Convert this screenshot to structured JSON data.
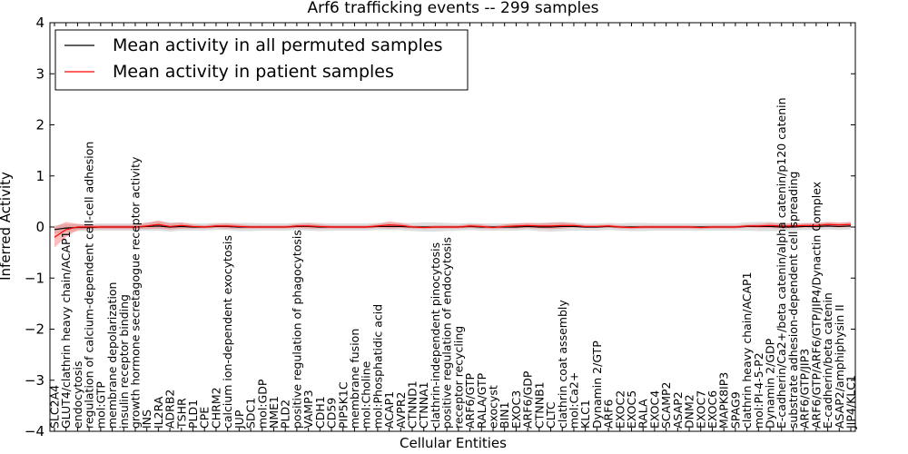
{
  "chart_data": {
    "type": "line",
    "title": "Arf6 trafficking events -- 299 samples",
    "xlabel": "Cellular Entities",
    "ylabel": "Inferred Activity",
    "ylim": [
      -4,
      4
    ],
    "yticks": [
      -4,
      -3,
      -2,
      -1,
      0,
      1,
      2,
      3,
      4
    ],
    "grid": false,
    "legend_position": "top-left",
    "categories": [
      "SLC2A4",
      "GLUT4/clathrin heavy chain/ACAP1",
      "endocytosis",
      "regulation of calcium-dependent cell-cell adhesion",
      "mol:GTP",
      "membrane depolarization",
      "insulin receptor binding",
      "growth hormone secretagogue receptor activity",
      "INS",
      "IL2RA",
      "ADRB2",
      "TSHR",
      "PLD1",
      "CPE",
      "CHRM2",
      "calcium ion-dependent exocytosis",
      "JUP",
      "SDC1",
      "mol:GDP",
      "NME1",
      "PLD2",
      "positive regulation of phagocytosis",
      "VAMP3",
      "CDH1",
      "CD59",
      "PIP5K1C",
      "membrane fusion",
      "mol:Choline",
      "mol:Phosphatidic acid",
      "ACAP1",
      "AVPR2",
      "CTNND1",
      "CTNNA1",
      "clathrin-independent pinocytosis",
      "positive regulation of endocytosis",
      "receptor recycling",
      "ARF6/GTP",
      "RALA/GTP",
      "exocyst",
      "BIN1",
      "EXOC3",
      "ARF6/GDP",
      "CTNNB1",
      "CLTC",
      "clathrin coat assembly",
      "mol:Ca2+",
      "KLC1",
      "Dynamin 2/GTP",
      "ARF6",
      "EXOC2",
      "EXOC5",
      "RALA",
      "EXOC4",
      "SCAMP2",
      "ASAP2",
      "DNM2",
      "EXOC7",
      "EXOC6",
      "MAPK8IP3",
      "SPAG9",
      "clathrin heavy chain/ACAP1",
      "mol:PI-4-5-P2",
      "Dynamin 2/GDP",
      "E-cadherin/Ca2+/beta catenin/alpha catenin/p120 catenin",
      "substrate adhesion-dependent cell spreading",
      "ARF6/GTP/JIP3",
      "ARF6/GTP/ARF6/GTP/JIP4/Dynactin Complex",
      "E-cadherin/beta catenin",
      "ASAP2/amphiphysin II",
      "JIP4/KLC1"
    ],
    "series": [
      {
        "name": "Mean activity in all permuted samples",
        "color": "#000000",
        "values": [
          -0.05,
          -0.02,
          -0.01,
          -0.01,
          0,
          0,
          0,
          0,
          0.01,
          0.02,
          0,
          0.01,
          0,
          0,
          0.01,
          0.01,
          0,
          0,
          0,
          0,
          0,
          0.01,
          0.01,
          0,
          0,
          0,
          0,
          0,
          0.01,
          0.01,
          0.01,
          0,
          0,
          0,
          0,
          0,
          0.01,
          0,
          0,
          0,
          0,
          0.01,
          0,
          0,
          0.01,
          0.01,
          0,
          0,
          0.01,
          0,
          0,
          0,
          0,
          0,
          0,
          0,
          0,
          0,
          0,
          0,
          0.01,
          0.01,
          0.01,
          0,
          0,
          0.01,
          0.01,
          0.02,
          0.01,
          0.02
        ],
        "band": [
          0.08,
          0.08,
          0.07,
          0.07,
          0.07,
          0.07,
          0.07,
          0.07,
          0.08,
          0.09,
          0.09,
          0.08,
          0.07,
          0.07,
          0.07,
          0.07,
          0.08,
          0.08,
          0.07,
          0.07,
          0.07,
          0.07,
          0.08,
          0.08,
          0.07,
          0.07,
          0.07,
          0.07,
          0.07,
          0.07,
          0.07,
          0.08,
          0.09,
          0.09,
          0.08,
          0.07,
          0.07,
          0.07,
          0.07,
          0.07,
          0.07,
          0.07,
          0.08,
          0.09,
          0.09,
          0.08,
          0.07,
          0.07,
          0.07,
          0.07,
          0.08,
          0.08,
          0.07,
          0.07,
          0.07,
          0.07,
          0.07,
          0.07,
          0.07,
          0.07,
          0.08,
          0.09,
          0.09,
          0.08,
          0.07,
          0.07,
          0.07,
          0.07,
          0.07,
          0.07
        ]
      },
      {
        "name": "Mean activity in patient samples",
        "color": "#ff0000",
        "values": [
          -0.2,
          -0.05,
          0,
          0,
          0,
          0,
          0,
          0,
          0.02,
          0.05,
          0.01,
          0.03,
          0.01,
          0,
          0.02,
          0.02,
          0.01,
          0,
          0,
          0,
          0,
          0.02,
          0.02,
          0.01,
          0,
          0,
          0,
          0,
          0.02,
          0.04,
          0.03,
          0,
          -0.01,
          0,
          0,
          0,
          0.02,
          0.01,
          -0.01,
          0.01,
          0.02,
          0.03,
          0.02,
          0.02,
          0.03,
          0.03,
          0.01,
          0.01,
          0.02,
          0,
          -0.01,
          0,
          0,
          0,
          0,
          0,
          -0.01,
          0,
          0,
          0,
          0.02,
          0.02,
          0.03,
          0.02,
          0.02,
          0.03,
          0.03,
          0.05,
          0.04,
          0.05
        ],
        "band": [
          0.2,
          0.15,
          0.06,
          0.04,
          0.04,
          0.04,
          0.04,
          0.04,
          0.06,
          0.08,
          0.06,
          0.06,
          0.04,
          0.03,
          0.04,
          0.05,
          0.04,
          0.03,
          0.03,
          0.03,
          0.03,
          0.04,
          0.05,
          0.04,
          0.03,
          0.03,
          0.03,
          0.03,
          0.04,
          0.07,
          0.05,
          0.03,
          0.03,
          0.03,
          0.03,
          0.03,
          0.04,
          0.04,
          0.03,
          0.04,
          0.05,
          0.05,
          0.05,
          0.06,
          0.06,
          0.04,
          0.03,
          0.03,
          0.03,
          0.03,
          0.03,
          0.03,
          0.03,
          0.03,
          0.03,
          0.03,
          0.03,
          0.03,
          0.03,
          0.03,
          0.03,
          0.04,
          0.05,
          0.05,
          0.04,
          0.04,
          0.05,
          0.05,
          0.05,
          0.05
        ]
      }
    ]
  }
}
